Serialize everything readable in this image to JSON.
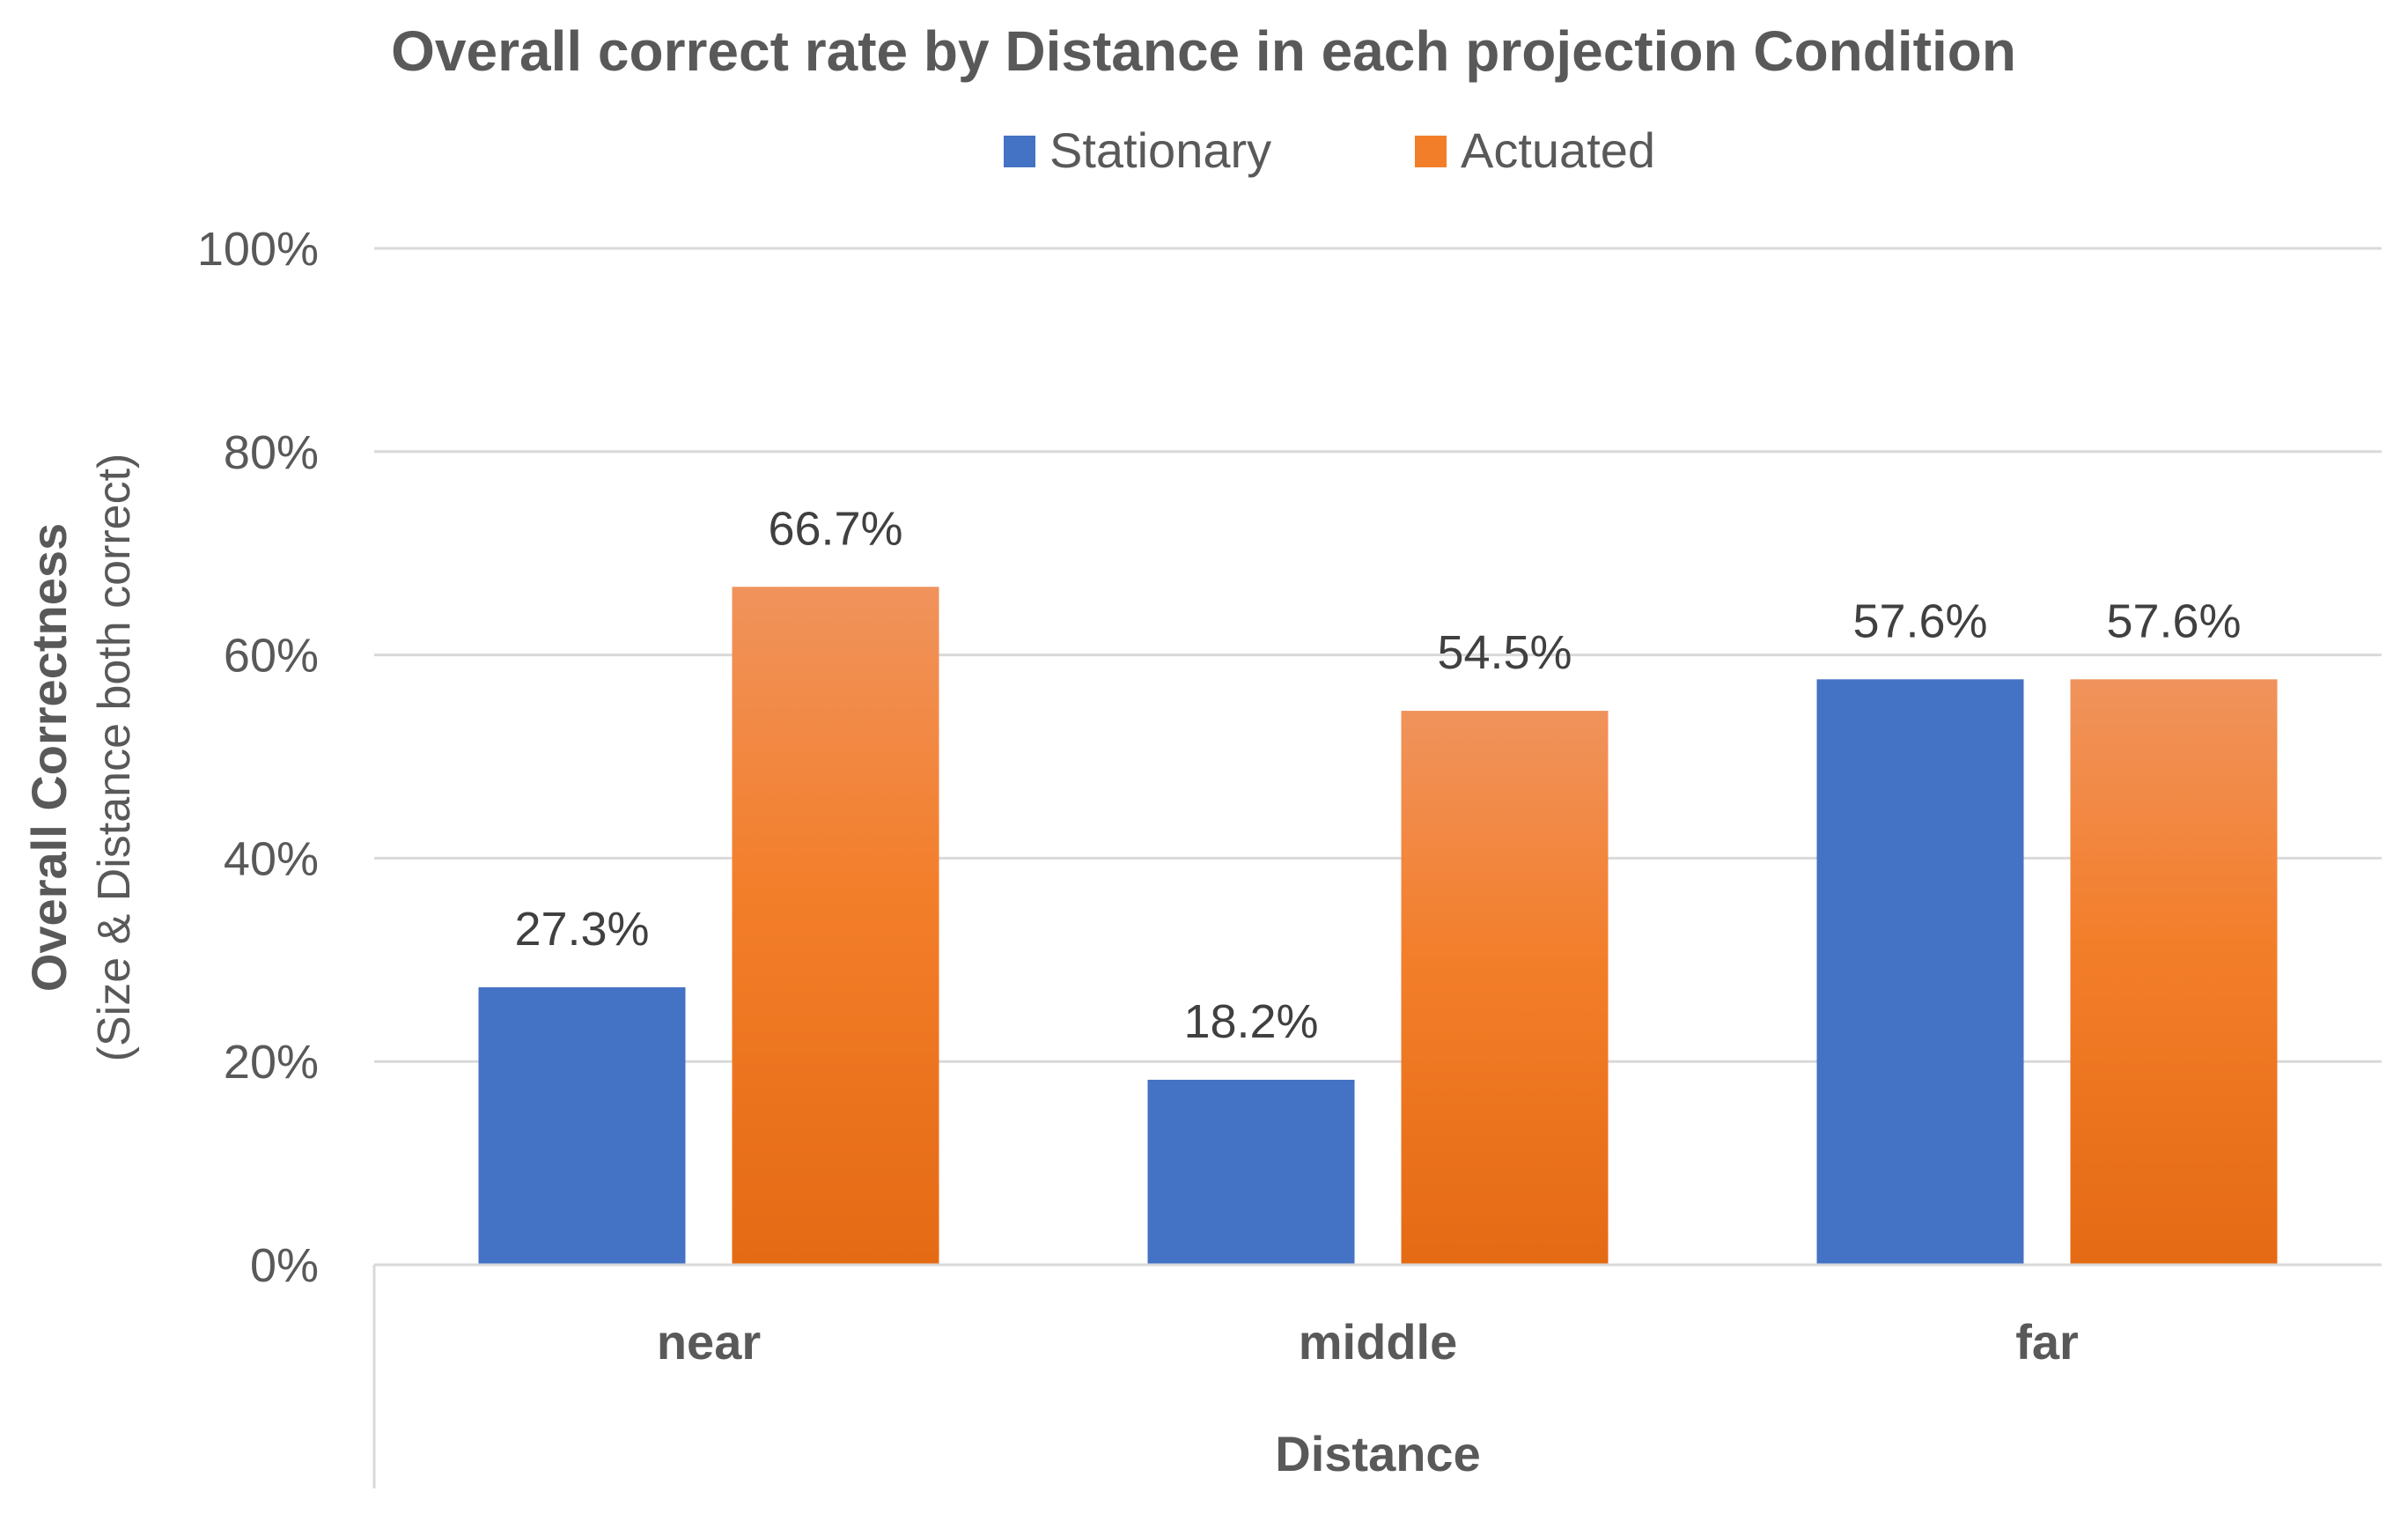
{
  "chart_data": {
    "type": "bar",
    "title": "Overall correct rate by Distance in each projection Condition",
    "xlabel": "Distance",
    "ylabel": "Overall Correctness",
    "ylabel_sub": "(Size & Distance both correct)",
    "categories": [
      "near",
      "middle",
      "far"
    ],
    "series": [
      {
        "name": "Stationary",
        "values": [
          27.3,
          18.2,
          57.6
        ],
        "labels": [
          "27.3%",
          "18.2%",
          "57.6%"
        ]
      },
      {
        "name": "Actuated",
        "values": [
          66.7,
          54.5,
          57.6
        ],
        "labels": [
          "66.7%",
          "54.5%",
          "57.6%"
        ]
      }
    ],
    "ylim": [
      0,
      100
    ],
    "yticks": [
      0,
      20,
      40,
      60,
      80,
      100
    ],
    "ytick_labels": [
      "0%",
      "20%",
      "40%",
      "60%",
      "80%",
      "100%"
    ],
    "grid": true,
    "legend_position": "top-center"
  },
  "colors": {
    "stationary": "#4472C4",
    "actuated_top": "#F0935C",
    "actuated_mid": "#F37E2A",
    "actuated_bottom": "#E56A14"
  }
}
